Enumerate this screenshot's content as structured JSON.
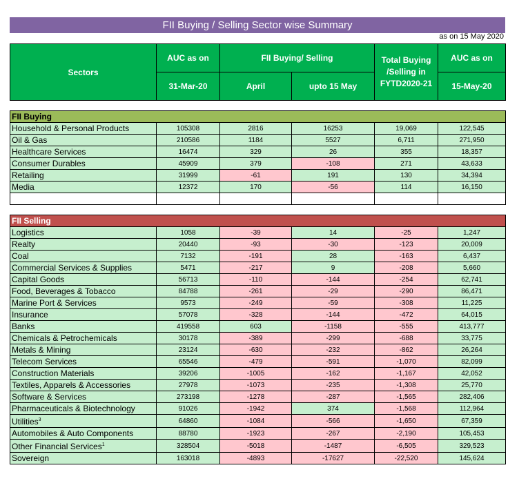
{
  "title": "FII Buying / Selling Sector wise Summary",
  "as_on": "as on 15 May 2020",
  "headers": {
    "sectors": "Sectors",
    "auc_label": "AUC as on",
    "auc_date": "31-Mar-20",
    "fii_bs": "FII Buying/ Selling",
    "april": "April",
    "upto": "upto 15 May",
    "total": "Total Buying /Selling in FYTD2020-21",
    "auc2_label": "AUC as on",
    "auc2_date": "15-May-20"
  },
  "buying": {
    "label": "FII Buying",
    "rows": [
      {
        "name": "Household & Personal Products",
        "auc": "105308",
        "april": "2816",
        "may": "16253",
        "total": "19,069",
        "auc2": "122,545"
      },
      {
        "name": "Oil & Gas",
        "auc": "210586",
        "april": "1184",
        "may": "5527",
        "total": "6,711",
        "auc2": "271,950"
      },
      {
        "name": "Healthcare Services",
        "auc": "16474",
        "april": "329",
        "may": "26",
        "total": "355",
        "auc2": "18,357"
      },
      {
        "name": "Consumer Durables",
        "auc": "45909",
        "april": "379",
        "may": "-108",
        "total": "271",
        "auc2": "43,633"
      },
      {
        "name": "Retailing",
        "auc": "31999",
        "april": "-61",
        "may": "191",
        "total": "130",
        "auc2": "34,394"
      },
      {
        "name": "Media",
        "auc": "12372",
        "april": "170",
        "may": "-56",
        "total": "114",
        "auc2": "16,150"
      }
    ]
  },
  "selling": {
    "label": "FII Selling",
    "rows": [
      {
        "name": "Logistics",
        "auc": "1058",
        "april": "-39",
        "may": "14",
        "total": "-25",
        "auc2": "1,247"
      },
      {
        "name": "Realty",
        "auc": "20440",
        "april": "-93",
        "may": "-30",
        "total": "-123",
        "auc2": "20,009"
      },
      {
        "name": "Coal",
        "auc": "7132",
        "april": "-191",
        "may": "28",
        "total": "-163",
        "auc2": "6,437"
      },
      {
        "name": "Commercial Services & Supplies",
        "auc": "5471",
        "april": "-217",
        "may": "9",
        "total": "-208",
        "auc2": "5,660"
      },
      {
        "name": "Capital Goods",
        "auc": "56713",
        "april": "-110",
        "may": "-144",
        "total": "-254",
        "auc2": "62,741"
      },
      {
        "name": "Food, Beverages & Tobacco",
        "auc": "84788",
        "april": "-261",
        "may": "-29",
        "total": "-290",
        "auc2": "86,471"
      },
      {
        "name": "Marine Port & Services",
        "auc": "9573",
        "april": "-249",
        "may": "-59",
        "total": "-308",
        "auc2": "11,225"
      },
      {
        "name": "Insurance",
        "auc": "57078",
        "april": "-328",
        "may": "-144",
        "total": "-472",
        "auc2": "64,015"
      },
      {
        "name": "Banks",
        "auc": "419558",
        "april": "603",
        "may": "-1158",
        "total": "-555",
        "auc2": "413,777"
      },
      {
        "name": "Chemicals & Petrochemicals",
        "auc": "30178",
        "april": "-389",
        "may": "-299",
        "total": "-688",
        "auc2": "33,775"
      },
      {
        "name": "Metals & Mining",
        "auc": "23124",
        "april": "-630",
        "may": "-232",
        "total": "-862",
        "auc2": "26,264"
      },
      {
        "name": "Telecom Services",
        "auc": "65546",
        "april": "-479",
        "may": "-591",
        "total": "-1,070",
        "auc2": "82,099"
      },
      {
        "name": "Construction Materials",
        "auc": "39206",
        "april": "-1005",
        "may": "-162",
        "total": "-1,167",
        "auc2": "42,052"
      },
      {
        "name": "Textiles, Apparels & Accessories",
        "auc": "27978",
        "april": "-1073",
        "may": "-235",
        "total": "-1,308",
        "auc2": "25,770"
      },
      {
        "name": "Software & Services",
        "auc": "273198",
        "april": "-1278",
        "may": "-287",
        "total": "-1,565",
        "auc2": "282,406"
      },
      {
        "name": "Pharmaceuticals & Biotechnology",
        "auc": "91026",
        "april": "-1942",
        "may": "374",
        "total": "-1,568",
        "auc2": "112,964"
      },
      {
        "name": "Utilities",
        "sup": "3",
        "auc": "64860",
        "april": "-1084",
        "may": "-566",
        "total": "-1,650",
        "auc2": "67,359"
      },
      {
        "name": "Automobiles & Auto Components",
        "auc": "88780",
        "april": "-1923",
        "may": "-267",
        "total": "-2,190",
        "auc2": "105,453"
      },
      {
        "name": "Other Financial Services",
        "sup": "1",
        "auc": "328504",
        "april": "-5018",
        "may": "-1487",
        "total": "-6,505",
        "auc2": "329,523"
      },
      {
        "name": "Sovereign",
        "auc": "163018",
        "april": "-4893",
        "may": "-17627",
        "total": "-22,520",
        "auc2": "145,624"
      }
    ]
  }
}
